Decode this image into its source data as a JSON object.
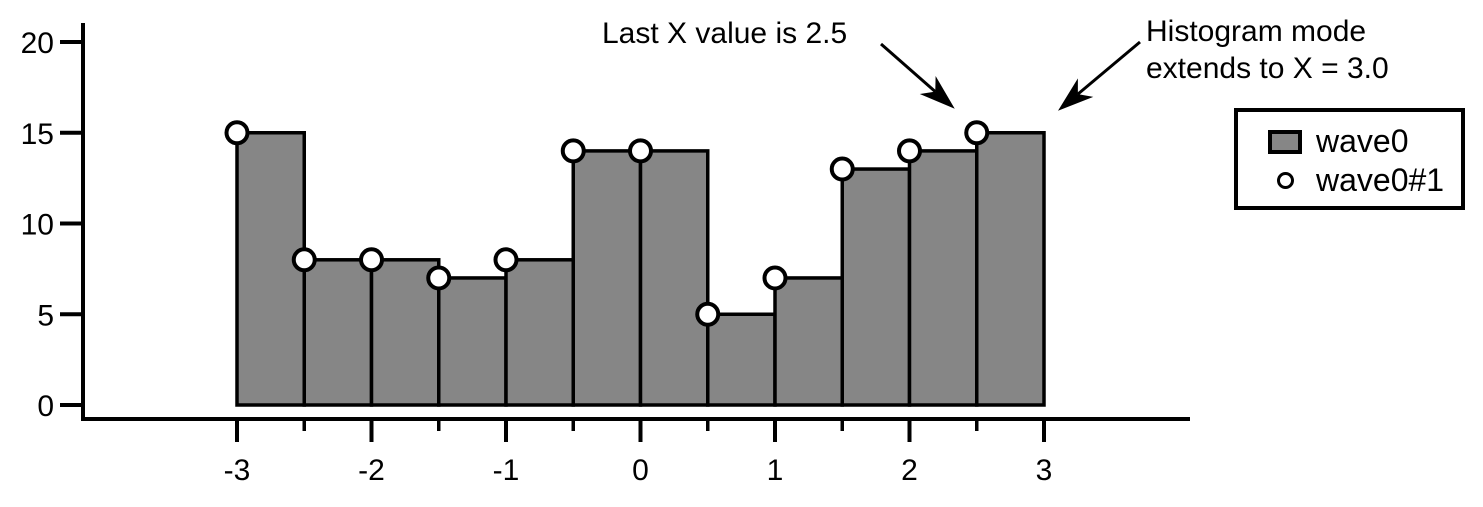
{
  "figure": {
    "background": "#ffffff"
  },
  "chart_data": {
    "type": "bar",
    "subtype": "histogram-with-markers",
    "title": "",
    "xlabel": "",
    "ylabel": "",
    "xlim": [
      -3,
      3
    ],
    "ylim": [
      0,
      20
    ],
    "grid": false,
    "bin_width": 0.5,
    "bin_start_x": [
      -3,
      -2.5,
      -2,
      -1.5,
      -1,
      -0.5,
      0,
      0.5,
      1,
      1.5,
      2,
      2.5
    ],
    "series": [
      {
        "name": "wave0",
        "render": "histogram-bars",
        "values": [
          15,
          8,
          8,
          7,
          8,
          14,
          14,
          5,
          7,
          13,
          14,
          15
        ]
      },
      {
        "name": "wave0#1",
        "render": "circle-markers",
        "x": [
          -3,
          -2.5,
          -2,
          -1.5,
          -1,
          -0.5,
          0,
          0.5,
          1,
          1.5,
          2,
          2.5
        ],
        "values": [
          15,
          8,
          8,
          7,
          8,
          14,
          14,
          5,
          7,
          13,
          14,
          15
        ]
      }
    ],
    "x_ticks_major": [
      -3,
      -2,
      -1,
      0,
      1,
      2,
      3
    ],
    "x_tick_labels": [
      "-3",
      "-2",
      "-1",
      "0",
      "1",
      "2",
      "3"
    ],
    "x_ticks_minor": [
      -2.5,
      -1.5,
      -0.5,
      0.5,
      1.5,
      2.5
    ],
    "y_ticks": [
      0,
      5,
      10,
      15,
      20
    ],
    "y_tick_labels": [
      "0",
      "5",
      "10",
      "15",
      "20"
    ],
    "legend_position": "top-right"
  },
  "annotations": [
    {
      "text": "Last X value is 2.5",
      "target_x": 2.5,
      "target_y": 15
    },
    {
      "lines": [
        "Histogram mode",
        "extends to X = 3.0"
      ],
      "target_x": 3.0,
      "target_y": 15
    }
  ],
  "legend": {
    "items": [
      {
        "swatch": "bar",
        "label": "wave0"
      },
      {
        "swatch": "circle",
        "label": "wave0#1"
      }
    ]
  },
  "colors": {
    "bar_fill": "#868686",
    "marker_fill": "#ffffff",
    "stroke": "#000000",
    "background": "#ffffff",
    "text": "#000000"
  }
}
